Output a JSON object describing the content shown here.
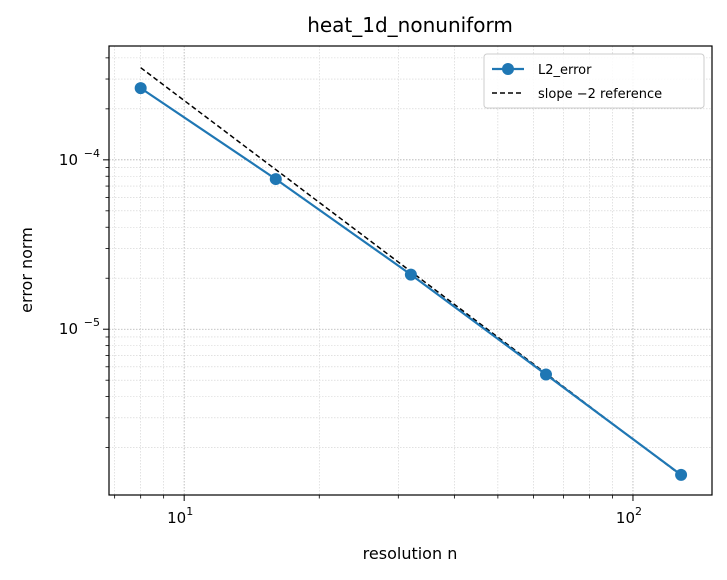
{
  "chart_data": {
    "type": "line",
    "title": "heat_1d_nonuniform",
    "xlabel": "resolution n",
    "ylabel": "error norm",
    "xscale": "log",
    "yscale": "log",
    "xlim": [
      6.8,
      150
    ],
    "ylim": [
      1.05e-06,
      0.00047
    ],
    "grid": true,
    "legend_position": "top-right",
    "x_ticks": [
      {
        "value": 10,
        "base": "10",
        "exp": "1"
      },
      {
        "value": 100,
        "base": "10",
        "exp": "2"
      }
    ],
    "y_ticks": [
      {
        "value": 1e-05,
        "base": "10",
        "exp": "−5"
      },
      {
        "value": 0.0001,
        "base": "10",
        "exp": "−4"
      }
    ],
    "series": [
      {
        "name": "L2_error",
        "color": "#1f77b4",
        "style": "solid-marker",
        "x": [
          8,
          16,
          32,
          64,
          128
        ],
        "y": [
          0.000265,
          7.7e-05,
          2.1e-05,
          5.4e-06,
          1.38e-06
        ]
      },
      {
        "name": "slope −2 reference",
        "color": "#000000",
        "style": "dashed",
        "x": [
          8,
          128
        ],
        "y": [
          0.00035,
          1.37e-06
        ]
      }
    ]
  }
}
